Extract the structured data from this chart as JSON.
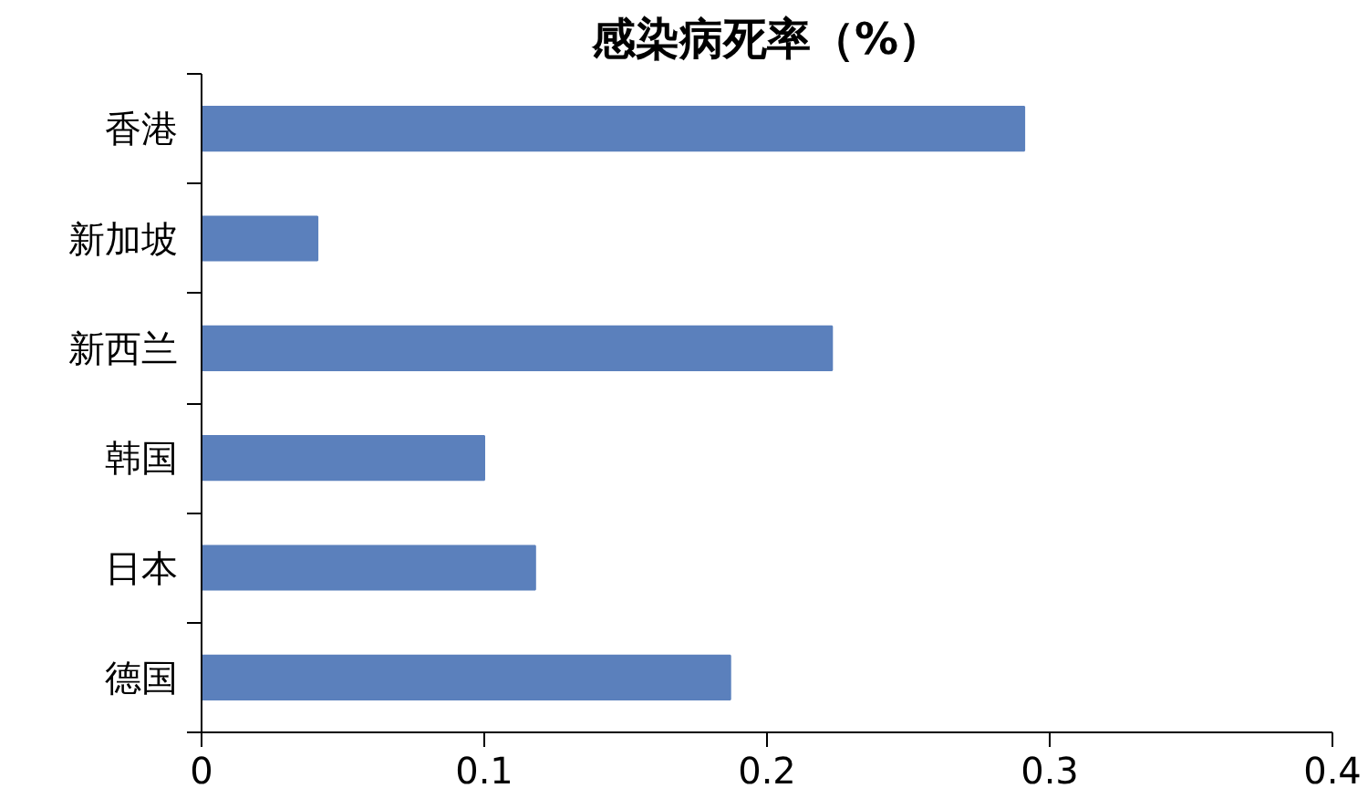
{
  "chart_data": {
    "type": "bar",
    "orientation": "horizontal",
    "title": "感染病死率（%）",
    "categories": [
      "香港",
      "新加坡",
      "新西兰",
      "韩国",
      "日本",
      "德国"
    ],
    "values": [
      0.291,
      0.041,
      0.223,
      0.1,
      0.118,
      0.187
    ],
    "color": "#5b80bc",
    "xlim": [
      0,
      0.4
    ],
    "xticks": [
      0,
      0.1,
      0.2,
      0.3,
      0.4
    ],
    "grid": false
  }
}
